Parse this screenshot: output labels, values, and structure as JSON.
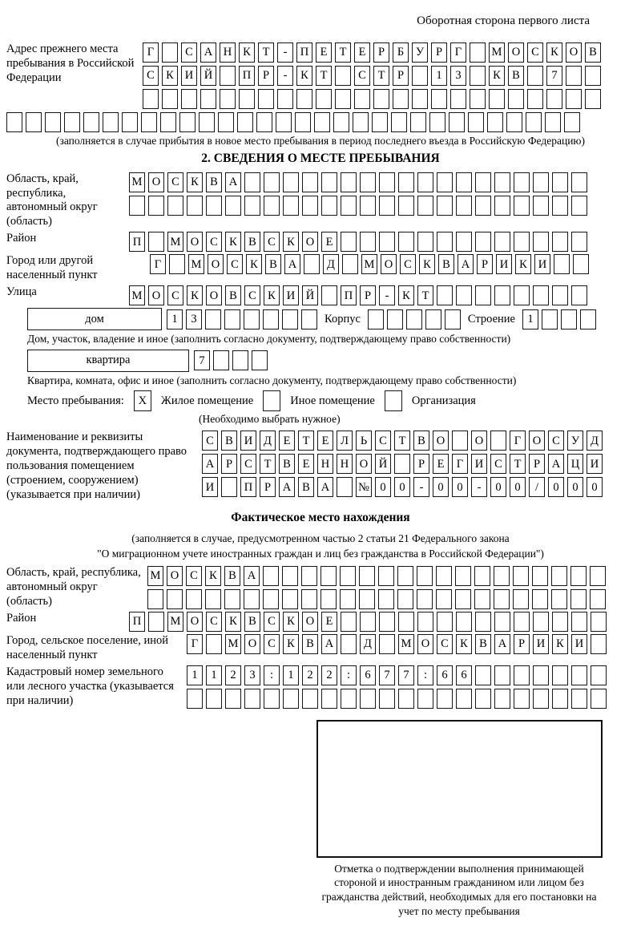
{
  "header": {
    "note": "Оборотная сторона первого листа"
  },
  "prev_address": {
    "label": "Адрес прежнего места пребывания в Российской Федерации",
    "rows": [
      {
        "chars": "Г САНКТ-ПЕТЕРБУРГ МОСКОВ",
        "count": 24
      },
      {
        "chars": "СКИЙ ПР-КТ СТР 13 КВ 7",
        "count": 24
      },
      {
        "chars": "",
        "count": 24
      }
    ],
    "overflow_row": {
      "chars": "",
      "count": 30
    },
    "caption": "(заполняется в случае прибытия в новое место пребывания в период последнего въезда в Российскую Федерацию)"
  },
  "section2": {
    "title": "2. СВЕДЕНИЯ О МЕСТЕ ПРЕБЫВАНИЯ",
    "region": {
      "label": "Область, край, республика, автономный округ (область)",
      "rows": [
        {
          "chars": "МОСКВА",
          "count": 24
        },
        {
          "chars": "",
          "count": 24
        }
      ]
    },
    "district": {
      "label": "Район",
      "row": {
        "chars": "П МОСКВСКОЕ",
        "count": 24
      }
    },
    "city": {
      "label": "Город или другой населенный пункт",
      "row": {
        "chars": "Г МОСКВА Д МОСКВАРИКИ",
        "count": 23
      }
    },
    "street": {
      "label": "Улица",
      "row": {
        "chars": "МОСКОВСКИЙ ПР-КТ",
        "count": 24
      }
    },
    "house": {
      "name_label": "дом",
      "numbers": {
        "chars": "13",
        "count": 8
      },
      "korpus_label": "Корпус",
      "korpus": {
        "chars": "",
        "count": 5
      },
      "stroenie_label": "Строение",
      "stroenie": {
        "chars": "1",
        "count": 4
      },
      "caption": "Дом, участок, владение и иное (заполнить согласно документу, подтверждающему право собственности)"
    },
    "apartment": {
      "name_label": "квартира",
      "numbers": {
        "chars": "7",
        "count": 4
      },
      "caption": "Квартира, комната, офис и иное (заполнить согласно документу, подтверждающему право собственности)"
    },
    "stay_type": {
      "label": "Место пребывания:",
      "options": [
        {
          "label": "Жилое помещение",
          "mark": "X"
        },
        {
          "label": "Иное помещение",
          "mark": ""
        },
        {
          "label": "Организация",
          "mark": ""
        }
      ],
      "caption": "(Необходимо выбрать нужное)"
    },
    "document": {
      "label": "Наименование и реквизиты документа, подтверждающего право пользования помещением (строением, сооружением) (указывается при наличии)",
      "rows": [
        {
          "chars": "СВИДЕТЕЛЬСТВО О ГОСУД",
          "count": 21
        },
        {
          "chars": "АРСТВЕННОЙ РЕГИСТРАЦИ",
          "count": 21
        },
        {
          "chars": "И ПРАВА №00-00-00/000",
          "count": 21
        }
      ]
    }
  },
  "actual_location": {
    "title": "Фактическое место нахождения",
    "caption_line1": "(заполняется в случае, предусмотренном частью 2 статьи 21 Федерального закона",
    "caption_line2": "\"О миграционном учете иностранных граждан и лиц без гражданства в Российской Федерации\")",
    "region": {
      "label": "Область, край, республика, автономный округ (область)",
      "rows": [
        {
          "chars": "МОСКВА",
          "count": 24
        },
        {
          "chars": "",
          "count": 24
        }
      ]
    },
    "district": {
      "label": "Район",
      "row": {
        "chars": "П МОСКВСКОЕ",
        "count": 25
      }
    },
    "city": {
      "label": "Город, сельское поселение, иной населенный пункт",
      "row": {
        "chars": "Г МОСКВА Д МОСКВАРИКИ",
        "count": 22
      }
    },
    "cadastre": {
      "label": "Кадастровый номер земельного или лесного участка (указывается при наличии)",
      "rows": [
        {
          "chars": "1123:122:677:66",
          "count": 22
        },
        {
          "chars": "",
          "count": 22
        }
      ]
    },
    "confirmation_caption": "Отметка о подтверждении выполнения принимающей стороной и иностранным гражданином или лицом без гражданства действий, необходимых для его постановки на учет по месту пребывания"
  }
}
